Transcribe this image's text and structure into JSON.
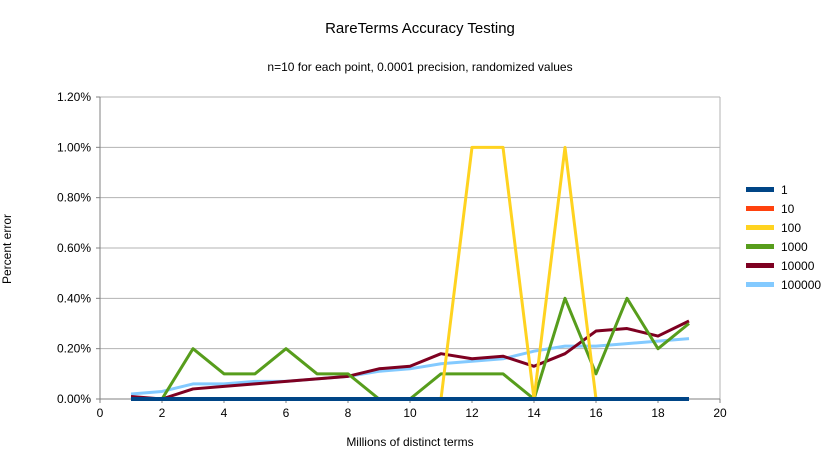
{
  "chart": {
    "title": "RareTerms Accuracy Testing",
    "subtitle": "n=10 for each point, 0.0001 precision, randomized values"
  },
  "chart_data": {
    "type": "line",
    "title": "RareTerms Accuracy Testing",
    "subtitle": "n=10 for each point, 0.0001 precision, randomized values",
    "xlabel": "Millions of distinct terms",
    "ylabel": "Percent error",
    "grid": true,
    "legend_position": "right",
    "xlim": [
      0,
      20
    ],
    "ylim": [
      0,
      1.2
    ],
    "x_tick_values": [
      0,
      2,
      4,
      6,
      8,
      10,
      12,
      14,
      16,
      18,
      20
    ],
    "x_tick_labels": [
      "0",
      "2",
      "4",
      "6",
      "8",
      "10",
      "12",
      "14",
      "16",
      "18",
      "20"
    ],
    "y_tick_values": [
      0,
      0.2,
      0.4,
      0.6,
      0.8,
      1.0,
      1.2
    ],
    "y_tick_labels": [
      "0.00%",
      "0.20%",
      "0.40%",
      "0.60%",
      "0.80%",
      "1.00%",
      "1.20%"
    ],
    "x": [
      1,
      2,
      3,
      4,
      5,
      6,
      7,
      8,
      9,
      10,
      11,
      12,
      13,
      14,
      15,
      16,
      17,
      18,
      19
    ],
    "y_unit": "percent",
    "series": [
      {
        "name": "1",
        "color": "#004586",
        "width": 4,
        "values": [
          0,
          0,
          0,
          0,
          0,
          0,
          0,
          0,
          0,
          0,
          0,
          0,
          0,
          0,
          0,
          0,
          0,
          0,
          0
        ]
      },
      {
        "name": "10",
        "color": "#ff420e",
        "width": 3,
        "values": [
          0,
          0,
          0,
          0,
          0,
          0,
          0,
          0,
          0,
          0,
          0,
          0,
          0,
          0,
          0,
          0,
          0,
          0,
          0
        ]
      },
      {
        "name": "100",
        "color": "#ffd320",
        "width": 3,
        "values": [
          0,
          0,
          0,
          0,
          0,
          0,
          0,
          0,
          0,
          0,
          0,
          1.0,
          1.0,
          0,
          1.0,
          0,
          0,
          0,
          0
        ]
      },
      {
        "name": "1000",
        "color": "#579d1c",
        "width": 3,
        "values": [
          0,
          0,
          0.2,
          0.1,
          0.1,
          0.2,
          0.1,
          0.1,
          0,
          0,
          0.1,
          0.1,
          0.1,
          0,
          0.4,
          0.1,
          0.4,
          0.2,
          0.3
        ]
      },
      {
        "name": "10000",
        "color": "#7e0021",
        "width": 3,
        "values": [
          0.01,
          0,
          0.04,
          0.05,
          0.06,
          0.07,
          0.08,
          0.09,
          0.12,
          0.13,
          0.18,
          0.16,
          0.17,
          0.13,
          0.18,
          0.27,
          0.28,
          0.25,
          0.31
        ]
      },
      {
        "name": "100000",
        "color": "#83caff",
        "width": 3,
        "values": [
          0.02,
          0.03,
          0.06,
          0.06,
          0.07,
          0.07,
          0.08,
          0.09,
          0.11,
          0.12,
          0.14,
          0.15,
          0.16,
          0.19,
          0.21,
          0.21,
          0.22,
          0.23,
          0.24
        ]
      }
    ],
    "colors": {
      "grid": "#b3b3b3",
      "axis": "#808080",
      "text": "#000000",
      "background": "#ffffff"
    }
  }
}
